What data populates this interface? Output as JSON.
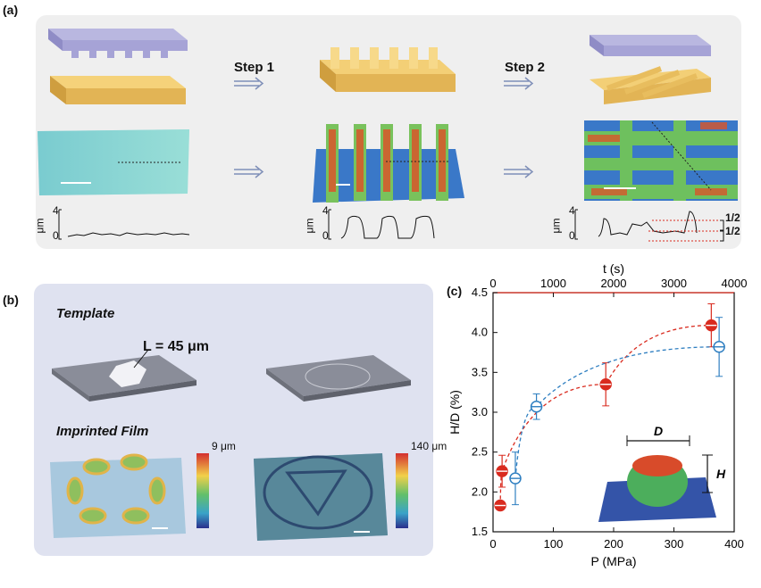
{
  "panel_a": {
    "label": "(a)",
    "step1": "Step 1",
    "step2": "Step 2",
    "unit": "μm",
    "tick_top": "4",
    "tick_bottom": "0",
    "half_top": "1/2",
    "half_bottom": "1/2"
  },
  "panel_b": {
    "label": "(b)",
    "template": "Template",
    "length": "L = 45 μm",
    "imprinted": "Imprinted Film",
    "scale1_max": "9 μm",
    "scale2_max": "140 μm"
  },
  "panel_c": {
    "label": "(c)",
    "inset_D": "D",
    "inset_H": "H",
    "colors": {
      "red": "#d92b1f",
      "blue": "#2f7fc1"
    }
  },
  "chart_data": {
    "type": "scatter",
    "xlabel": "P (MPa)",
    "x2label": "t (s)",
    "ylabel": "H/D (%)",
    "xlim": [
      0,
      400
    ],
    "x2lim": [
      0,
      4000
    ],
    "ylim": [
      1.5,
      4.5
    ],
    "xticks": [
      "0",
      "100",
      "200",
      "300",
      "400"
    ],
    "x2ticks": [
      "0",
      "1000",
      "2000",
      "3000",
      "4000"
    ],
    "yticks": [
      "1.5",
      "2.0",
      "2.5",
      "3.0",
      "3.5",
      "4.0",
      "4.5"
    ],
    "series": [
      {
        "axis": "bottom",
        "color": "#d92b1f",
        "points": [
          {
            "x": 12,
            "y": 1.83,
            "err": 0
          },
          {
            "x": 15,
            "y": 2.26,
            "err": 0.2
          },
          {
            "x": 187,
            "y": 3.35,
            "err": 0.27
          },
          {
            "x": 362,
            "y": 4.09,
            "err": 0.27
          }
        ]
      },
      {
        "axis": "top",
        "color": "#2f7fc1",
        "points": [
          {
            "x": 370,
            "y": 2.17,
            "err": 0.33
          },
          {
            "x": 720,
            "y": 3.07,
            "err": 0.16
          },
          {
            "x": 3750,
            "y": 3.82,
            "err": 0.37
          }
        ]
      }
    ]
  }
}
